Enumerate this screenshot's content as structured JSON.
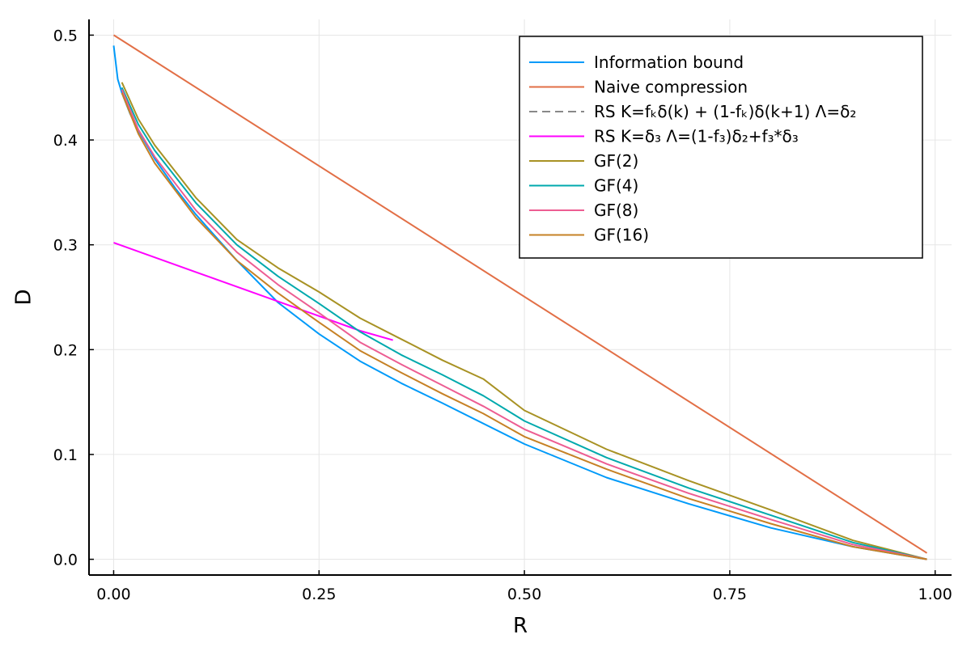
{
  "chart_data": {
    "type": "line",
    "xlabel": "R",
    "ylabel": "D",
    "xlim": [
      -0.03,
      1.02
    ],
    "ylim": [
      -0.015,
      0.515
    ],
    "xticks": [
      0.0,
      0.25,
      0.5,
      0.75,
      1.0
    ],
    "xtick_labels": [
      "0.00",
      "0.25",
      "0.50",
      "0.75",
      "1.00"
    ],
    "yticks": [
      0.0,
      0.1,
      0.2,
      0.3,
      0.4,
      0.5
    ],
    "ytick_labels": [
      "0.0",
      "0.1",
      "0.2",
      "0.3",
      "0.4",
      "0.5"
    ],
    "grid": true,
    "legend_position": "top-right",
    "series": [
      {
        "name": "Information bound",
        "color": "#009AF9",
        "dash": "solid",
        "x": [
          0.0,
          0.005,
          0.01,
          0.02,
          0.03,
          0.05,
          0.075,
          0.1,
          0.15,
          0.2,
          0.25,
          0.3,
          0.35,
          0.4,
          0.5,
          0.6,
          0.7,
          0.8,
          0.9,
          0.99
        ],
        "y": [
          0.49,
          0.458,
          0.445,
          0.425,
          0.409,
          0.382,
          0.354,
          0.329,
          0.285,
          0.245,
          0.215,
          0.189,
          0.168,
          0.149,
          0.11,
          0.078,
          0.053,
          0.03,
          0.012,
          0.0
        ]
      },
      {
        "name": "Naive compression",
        "color": "#E26F46",
        "dash": "solid",
        "x": [
          0.0,
          0.99
        ],
        "y": [
          0.5,
          0.006
        ]
      },
      {
        "name": "RS K=fₖδ(k) + (1-fₖ)δ(k+1) Λ=δ₂",
        "color": "#888888",
        "dash": "dashed",
        "x": [],
        "y": []
      },
      {
        "name": "RS K=δ₃ Λ=(1-f₃)δ₂+f₃*δ₃",
        "color": "#FF00FF",
        "dash": "solid",
        "x": [
          0.0,
          0.1,
          0.2,
          0.25,
          0.3,
          0.34
        ],
        "y": [
          0.302,
          0.274,
          0.246,
          0.232,
          0.218,
          0.209
        ]
      },
      {
        "name": "GF(2)",
        "color": "#A89224",
        "dash": "solid",
        "x": [
          0.01,
          0.03,
          0.05,
          0.1,
          0.15,
          0.2,
          0.25,
          0.3,
          0.35,
          0.4,
          0.45,
          0.5,
          0.6,
          0.7,
          0.8,
          0.9,
          0.99
        ],
        "y": [
          0.455,
          0.42,
          0.395,
          0.345,
          0.305,
          0.278,
          0.255,
          0.23,
          0.21,
          0.19,
          0.172,
          0.142,
          0.105,
          0.075,
          0.047,
          0.018,
          0.0
        ]
      },
      {
        "name": "GF(4)",
        "color": "#00A9AD",
        "dash": "solid",
        "x": [
          0.01,
          0.03,
          0.05,
          0.1,
          0.15,
          0.2,
          0.25,
          0.3,
          0.35,
          0.4,
          0.45,
          0.5,
          0.6,
          0.7,
          0.8,
          0.9,
          0.99
        ],
        "y": [
          0.45,
          0.415,
          0.39,
          0.34,
          0.3,
          0.27,
          0.244,
          0.217,
          0.195,
          0.176,
          0.156,
          0.132,
          0.097,
          0.068,
          0.042,
          0.016,
          0.0
        ]
      },
      {
        "name": "GF(8)",
        "color": "#ED5D92",
        "dash": "solid",
        "x": [
          0.01,
          0.03,
          0.05,
          0.1,
          0.15,
          0.2,
          0.25,
          0.3,
          0.35,
          0.4,
          0.45,
          0.5,
          0.6,
          0.7,
          0.8,
          0.9,
          0.99
        ],
        "y": [
          0.448,
          0.41,
          0.384,
          0.333,
          0.293,
          0.262,
          0.235,
          0.207,
          0.186,
          0.166,
          0.146,
          0.124,
          0.091,
          0.063,
          0.038,
          0.014,
          0.0
        ]
      },
      {
        "name": "GF(16)",
        "color": "#C68125",
        "dash": "solid",
        "x": [
          0.01,
          0.03,
          0.05,
          0.1,
          0.15,
          0.2,
          0.25,
          0.3,
          0.35,
          0.4,
          0.45,
          0.5,
          0.6,
          0.7,
          0.8,
          0.9,
          0.99
        ],
        "y": [
          0.445,
          0.406,
          0.378,
          0.326,
          0.285,
          0.254,
          0.226,
          0.199,
          0.178,
          0.158,
          0.139,
          0.117,
          0.086,
          0.058,
          0.034,
          0.012,
          0.0
        ]
      }
    ]
  }
}
